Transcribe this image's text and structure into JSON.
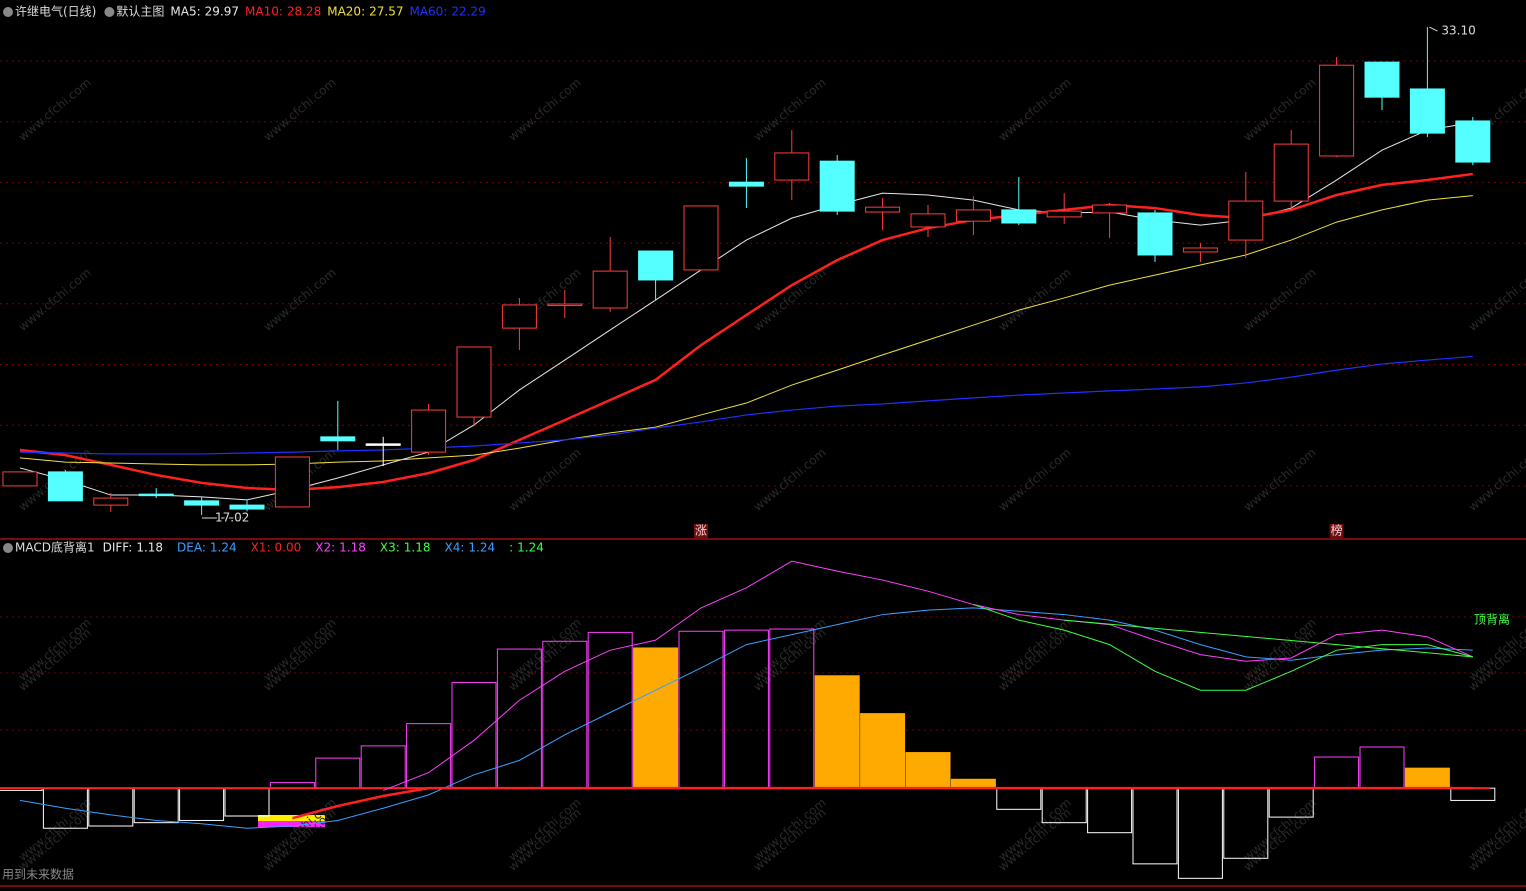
{
  "chart_data": [
    {
      "type": "candlestick",
      "title": "许继电气(日线)",
      "subtitle": "默认主图",
      "categories": [
        null,
        null,
        null,
        null,
        null,
        null,
        null,
        null,
        null,
        null,
        null,
        null,
        null,
        null,
        null,
        null,
        null,
        null,
        null,
        null,
        null,
        null,
        null,
        null,
        null,
        null,
        null,
        null,
        null,
        null,
        null,
        null,
        null
      ],
      "open": [
        18.04,
        18.5,
        17.41,
        17.77,
        17.55,
        17.41,
        17.35,
        19.65,
        19.42,
        19.15,
        20.3,
        23.22,
        23.98,
        23.88,
        25.75,
        25.13,
        28.01,
        28.08,
        28.7,
        27.03,
        26.54,
        26.73,
        27.1,
        26.87,
        27.0,
        27.0,
        25.72,
        26.11,
        27.39,
        28.87,
        31.95,
        31.07,
        30.02
      ],
      "high": [
        18.5,
        18.56,
        17.81,
        17.97,
        17.68,
        17.58,
        18.99,
        20.83,
        19.65,
        20.73,
        22.6,
        24.21,
        24.47,
        26.21,
        25.75,
        27.23,
        28.8,
        29.72,
        28.9,
        27.49,
        27.26,
        27.55,
        28.18,
        27.65,
        27.33,
        27.1,
        26.01,
        28.34,
        29.72,
        32.12,
        31.95,
        33.1,
        30.15
      ],
      "low": [
        18.04,
        17.55,
        17.18,
        17.64,
        17.09,
        17.02,
        17.35,
        19.22,
        18.69,
        19.05,
        20.04,
        22.5,
        23.55,
        23.75,
        24.14,
        25.13,
        27.16,
        27.42,
        26.93,
        26.44,
        26.21,
        26.27,
        26.6,
        26.64,
        26.18,
        25.39,
        25.39,
        25.52,
        27.1,
        28.83,
        30.38,
        29.49,
        28.57
      ],
      "close": [
        18.5,
        17.55,
        17.64,
        17.72,
        17.41,
        17.28,
        18.99,
        19.52,
        19.42,
        20.53,
        22.6,
        23.98,
        24.01,
        25.09,
        24.8,
        27.23,
        27.88,
        28.97,
        27.06,
        27.19,
        26.97,
        27.1,
        26.67,
        27.06,
        27.26,
        25.62,
        25.85,
        27.39,
        29.26,
        31.85,
        30.8,
        29.62,
        28.67
      ],
      "high_labels": [
        null,
        null,
        null,
        null,
        null,
        null,
        null,
        null,
        null,
        null,
        null,
        null,
        null,
        null,
        null,
        null,
        null,
        null,
        null,
        null,
        null,
        null,
        null,
        null,
        null,
        null,
        null,
        null,
        null,
        null,
        null,
        "33.10",
        null
      ],
      "markers": [
        null,
        null,
        null,
        null,
        null,
        null,
        null,
        null,
        null,
        null,
        null,
        null,
        null,
        null,
        null,
        "涨",
        null,
        null,
        null,
        null,
        null,
        null,
        null,
        null,
        null,
        null,
        null,
        null,
        null,
        "榜",
        null,
        null,
        null
      ],
      "up_color": "#ff3c3c",
      "down_color": "#54ffff",
      "flat_color": "#ffffff",
      "series": [
        {
          "name": "MA5:",
          "color": "#e8e8e8",
          "line_width": 1,
          "values": [
            18.63,
            18.23,
            17.74,
            17.74,
            17.68,
            17.58,
            17.91,
            18.3,
            18.73,
            19.15,
            20.04,
            21.19,
            22.17,
            23.16,
            24.14,
            25.13,
            26.11,
            26.83,
            27.26,
            27.65,
            27.59,
            27.42,
            27.1,
            27.0,
            27.03,
            26.77,
            26.6,
            26.77,
            27.16,
            28.08,
            29.06,
            29.72,
            29.97
          ]
        },
        {
          "name": "MA10:",
          "color": "#ff2020",
          "line_width": 2.5,
          "values": [
            19.22,
            19.05,
            18.73,
            18.4,
            18.14,
            17.97,
            17.91,
            18.0,
            18.17,
            18.46,
            18.89,
            19.55,
            20.2,
            20.86,
            21.52,
            22.66,
            23.65,
            24.63,
            25.45,
            26.11,
            26.5,
            26.77,
            26.93,
            27.1,
            27.26,
            27.16,
            26.93,
            26.83,
            27.1,
            27.59,
            27.92,
            28.08,
            28.28
          ]
        },
        {
          "name": "MA20:",
          "color": "#f0e040",
          "line_width": 1,
          "values": [
            18.96,
            18.82,
            18.79,
            18.76,
            18.73,
            18.73,
            18.76,
            18.82,
            18.86,
            18.96,
            19.05,
            19.28,
            19.55,
            19.78,
            19.97,
            20.37,
            20.76,
            21.35,
            21.84,
            22.34,
            22.83,
            23.32,
            23.81,
            24.21,
            24.63,
            24.96,
            25.29,
            25.62,
            26.11,
            26.7,
            27.1,
            27.42,
            27.57
          ]
        },
        {
          "name": "MA60:",
          "color": "#2030ff",
          "line_width": 1.2,
          "values": [
            19.15,
            19.12,
            19.09,
            19.09,
            19.09,
            19.12,
            19.15,
            19.19,
            19.22,
            19.28,
            19.35,
            19.45,
            19.55,
            19.71,
            19.94,
            20.14,
            20.37,
            20.53,
            20.66,
            20.73,
            20.83,
            20.93,
            21.02,
            21.09,
            21.16,
            21.22,
            21.29,
            21.42,
            21.61,
            21.84,
            22.04,
            22.17,
            22.29
          ]
        }
      ],
      "ylim": [
        16.33,
        33.99
      ],
      "watermark": "www.cfchi.com"
    },
    {
      "type": "macd",
      "title": "MACD底背离1",
      "legend": [
        {
          "name": "DIFF:",
          "value": 1.18,
          "color": "#e8e8e8"
        },
        {
          "name": "DEA:",
          "value": 1.24,
          "color": "#3aa0ff"
        },
        {
          "name": "X1:",
          "value": {
            "value": 0,
            "label": "0.00"
          },
          "color": "#ff2020"
        },
        {
          "name": "X2:",
          "value": 1.18,
          "color": "#ff40ff"
        },
        {
          "name": "X3:",
          "value": 1.18,
          "color": "#40ff40"
        },
        {
          "name": "X4:",
          "value": 1.24,
          "color": "#3aa0ff"
        },
        {
          "name": ":",
          "value": 1.24,
          "color": "#40ff40"
        }
      ],
      "histogram": [
        -0.02,
        -0.36,
        -0.34,
        -0.31,
        -0.29,
        -0.25,
        0.05,
        0.27,
        0.38,
        0.58,
        0.95,
        1.25,
        1.32,
        1.4,
        1.26,
        1.41,
        1.42,
        1.43,
        1.01,
        0.67,
        0.32,
        0.08,
        -0.19,
        -0.31,
        -0.4,
        -0.68,
        -0.81,
        -0.63,
        -0.26,
        0.28,
        0.37,
        0.18,
        -0.11
      ],
      "rise_color": "#ff40ff",
      "fall_color": "#ffaa00",
      "negative_color": "#ffffff",
      "series": [
        {
          "color": "#3aa0ff",
          "line_width": 1,
          "values": [
            -0.11,
            -0.18,
            -0.24,
            -0.29,
            -0.32,
            -0.36,
            -0.34,
            -0.29,
            -0.18,
            -0.06,
            0.12,
            0.25,
            0.48,
            0.68,
            0.88,
            1.08,
            1.29,
            1.38,
            1.47,
            1.56,
            1.6,
            1.62,
            1.59,
            1.56,
            1.51,
            1.42,
            1.29,
            1.18,
            1.15,
            1.2,
            1.24,
            1.26,
            1.24
          ]
        },
        {
          "color": "#ff40ff",
          "line_width": 1,
          "values": [
            null,
            null,
            null,
            null,
            null,
            null,
            null,
            null,
            -0.02,
            0.14,
            0.43,
            0.79,
            1.05,
            1.24,
            1.33,
            1.62,
            1.8,
            2.04,
            1.95,
            1.87,
            1.77,
            1.65,
            1.56,
            1.51,
            1.47,
            1.33,
            1.2,
            1.14,
            1.17,
            1.38,
            1.42,
            1.36,
            1.18
          ]
        },
        {
          "color": "#40ff40",
          "line_width": 1,
          "values": [
            null,
            null,
            null,
            null,
            null,
            null,
            null,
            null,
            null,
            null,
            null,
            null,
            null,
            null,
            null,
            null,
            null,
            null,
            null,
            null,
            null,
            1.65,
            1.51,
            1.42,
            1.29,
            1.05,
            0.88,
            0.88,
            1.05,
            1.24,
            1.29,
            1.29,
            1.18
          ]
        },
        {
          "color": "#ff2020",
          "line_width": 2.5,
          "values": [
            null,
            null,
            null,
            null,
            null,
            null,
            -0.27,
            -0.16,
            -0.07,
            0.0,
            0.0,
            0.0,
            0.0,
            0.0,
            0.0,
            0.0,
            0.0,
            0.0,
            0.0,
            0.0,
            0.0,
            0.0,
            0.0,
            0.0,
            0.0,
            0.0,
            0.0,
            0.0,
            0.0,
            0.0,
            0.0,
            0.0,
            0.0
          ]
        }
      ],
      "ylim": [
        -0.87,
        2.23
      ],
      "annotation": "顶背离",
      "footer": "用到未来数据"
    }
  ]
}
